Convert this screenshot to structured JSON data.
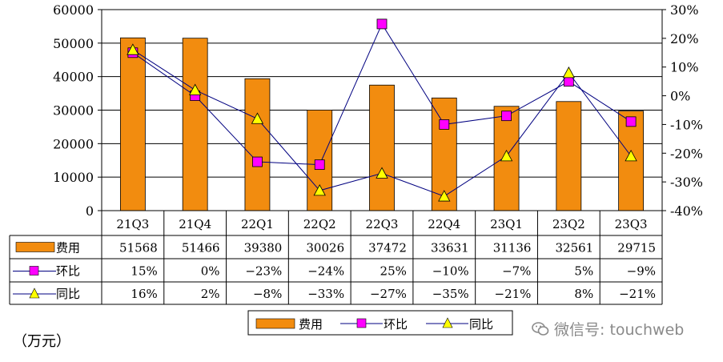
{
  "chart_data": {
    "type": "bar",
    "title": "",
    "categories": [
      "21Q3",
      "21Q4",
      "22Q1",
      "22Q2",
      "22Q3",
      "22Q4",
      "23Q1",
      "23Q2",
      "23Q3"
    ],
    "left_axis": {
      "min": 0,
      "max": 60000,
      "step": 10000,
      "ticks": [
        "0",
        "10000",
        "20000",
        "30000",
        "40000",
        "50000",
        "60000"
      ]
    },
    "right_axis": {
      "min": -40,
      "max": 30,
      "step": 10,
      "ticks": [
        "-40%",
        "-30%",
        "-20%",
        "-10%",
        "0%",
        "10%",
        "20%",
        "30%"
      ]
    },
    "series": [
      {
        "name": "费用",
        "kind": "bar",
        "axis": "left",
        "color": "#F28C0F",
        "values": [
          51568,
          51466,
          39380,
          30026,
          37472,
          33631,
          31136,
          32561,
          29715
        ],
        "labels": [
          "51568",
          "51466",
          "39380",
          "30026",
          "37472",
          "33631",
          "31136",
          "32561",
          "29715"
        ]
      },
      {
        "name": "环比",
        "kind": "line",
        "axis": "right",
        "color": "#FF00FF",
        "line_color": "#000080",
        "marker": "square",
        "values": [
          15,
          0,
          -23,
          -24,
          25,
          -10,
          -7,
          5,
          -9
        ],
        "labels": [
          "15%",
          "0%",
          "−23%",
          "−24%",
          "25%",
          "−10%",
          "−7%",
          "5%",
          "−9%"
        ]
      },
      {
        "name": "同比",
        "kind": "line",
        "axis": "right",
        "color": "#FFFF00",
        "line_color": "#000080",
        "marker": "triangle",
        "values": [
          16,
          2,
          -8,
          -33,
          -27,
          -35,
          -21,
          8,
          -21
        ],
        "labels": [
          "16%",
          "2%",
          "−8%",
          "−33%",
          "−27%",
          "−35%",
          "−21%",
          "8%",
          "−21%"
        ]
      }
    ],
    "legend": [
      "费用",
      "环比",
      "同比"
    ],
    "legend_position": "bottom-center",
    "grid": true
  },
  "unit_label": "（万元）",
  "watermark": "微信号: touchweb"
}
